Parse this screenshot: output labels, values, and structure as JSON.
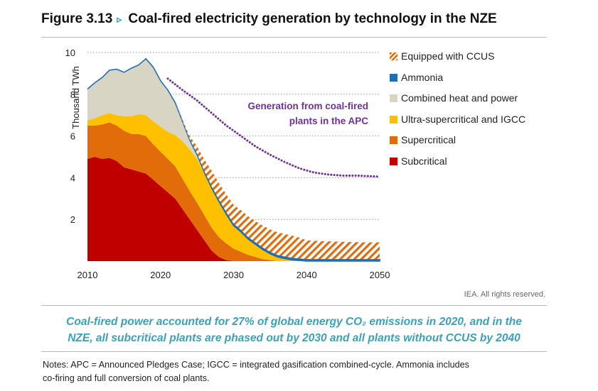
{
  "figure": {
    "label": "Figure 3.13",
    "arrow": "▹",
    "title": "Coal-fired electricity generation by technology in the NZE"
  },
  "rights": "IEA. All rights reserved.",
  "caption": {
    "line1": "Coal-fired power accounted for 27% of global energy CO₂ emissions in 2020, and in the",
    "line2": "NZE, all subcritical plants are phased out by 2030 and all plants without CCUS by 2040"
  },
  "notes": {
    "line1": "Notes: APC = Announced Pledges Case; IGCC = integrated gasification combined-cycle. Ammonia includes",
    "line2": "co-firing and full conversion of coal plants."
  },
  "chart_data": {
    "type": "area",
    "stacked": true,
    "ylabel": "Thousand TWh",
    "xlabel": "",
    "xlim": [
      2010,
      2050
    ],
    "ylim": [
      0,
      10
    ],
    "x_ticks": [
      "2010",
      "2020",
      "2030",
      "2040",
      "2050"
    ],
    "y_ticks": [
      "2",
      "4",
      "6",
      "8",
      "10"
    ],
    "grid": "dotted horizontal",
    "legend_position": "right",
    "annotation": {
      "line1": "Generation from coal-fired",
      "line2": "plants in the APC"
    },
    "x": [
      2010,
      2011,
      2012,
      2013,
      2014,
      2015,
      2016,
      2017,
      2018,
      2019,
      2020,
      2021,
      2022,
      2023,
      2024,
      2025,
      2026,
      2027,
      2028,
      2029,
      2030,
      2031,
      2032,
      2033,
      2034,
      2035,
      2036,
      2037,
      2038,
      2039,
      2040,
      2041,
      2042,
      2043,
      2044,
      2045,
      2046,
      2047,
      2048,
      2049,
      2050
    ],
    "series": [
      {
        "name": "Subcritical",
        "color": "#c00000",
        "pattern": false,
        "values": [
          4.9,
          5.0,
          4.9,
          4.95,
          4.8,
          4.5,
          4.4,
          4.3,
          4.2,
          3.9,
          3.6,
          3.3,
          3.0,
          2.5,
          2.0,
          1.5,
          1.0,
          0.5,
          0.2,
          0.05,
          0,
          0,
          0,
          0,
          0,
          0,
          0,
          0,
          0,
          0,
          0,
          0,
          0,
          0,
          0,
          0,
          0,
          0,
          0,
          0,
          0
        ]
      },
      {
        "name": "Supercritical",
        "color": "#e36c0a",
        "pattern": false,
        "values": [
          1.6,
          1.5,
          1.65,
          1.7,
          1.7,
          1.75,
          1.7,
          1.8,
          1.8,
          1.7,
          1.65,
          1.6,
          1.55,
          1.45,
          1.35,
          1.3,
          1.2,
          1.1,
          0.95,
          0.8,
          0.6,
          0.45,
          0.3,
          0.2,
          0.1,
          0.05,
          0,
          0,
          0,
          0,
          0,
          0,
          0,
          0,
          0,
          0,
          0,
          0,
          0,
          0,
          0
        ]
      },
      {
        "name": "Ultra-supercritical and IGCC",
        "color": "#ffc000",
        "pattern": false,
        "values": [
          0.25,
          0.35,
          0.45,
          0.45,
          0.5,
          0.7,
          0.85,
          0.95,
          1.0,
          1.1,
          1.2,
          1.3,
          1.5,
          1.8,
          2.0,
          2.1,
          2.0,
          1.9,
          1.7,
          1.4,
          1.1,
          0.95,
          0.75,
          0.6,
          0.45,
          0.3,
          0.2,
          0.12,
          0.06,
          0.03,
          0,
          0,
          0,
          0,
          0,
          0,
          0,
          0,
          0,
          0,
          0
        ]
      },
      {
        "name": "Combined heat and power",
        "color": "#d9d5c4",
        "pattern": false,
        "values": [
          1.5,
          1.7,
          1.8,
          2.05,
          2.2,
          2.1,
          2.3,
          2.35,
          2.7,
          2.6,
          2.2,
          2.0,
          1.55,
          0.95,
          0.45,
          0.2,
          0.05,
          0,
          0,
          0,
          0,
          0,
          0,
          0,
          0,
          0,
          0,
          0,
          0,
          0,
          0,
          0,
          0,
          0,
          0,
          0,
          0,
          0,
          0,
          0,
          0
        ]
      },
      {
        "name": "Ammonia",
        "color": "#1f6fb5",
        "pattern": false,
        "values": [
          0,
          0,
          0,
          0,
          0,
          0,
          0,
          0,
          0,
          0,
          0,
          0,
          0,
          0.02,
          0.04,
          0.05,
          0.07,
          0.08,
          0.09,
          0.1,
          0.1,
          0.1,
          0.1,
          0.1,
          0.1,
          0.1,
          0.1,
          0.1,
          0.1,
          0.1,
          0.1,
          0.1,
          0.1,
          0.1,
          0.1,
          0.1,
          0.1,
          0.1,
          0.1,
          0.1,
          0.1
        ]
      },
      {
        "name": "Equipped with CCUS",
        "color": "#e36c0a",
        "pattern": true,
        "values": [
          0,
          0,
          0,
          0,
          0,
          0,
          0,
          0,
          0,
          0,
          0,
          0,
          0,
          0.05,
          0.15,
          0.35,
          0.55,
          0.75,
          0.8,
          0.85,
          0.9,
          0.95,
          1.0,
          1.02,
          1.05,
          1.07,
          1.08,
          1.08,
          1.06,
          1.0,
          0.9,
          0.88,
          0.86,
          0.85,
          0.84,
          0.83,
          0.82,
          0.81,
          0.8,
          0.8,
          0.8
        ]
      }
    ],
    "apc_line": {
      "name": "Generation from coal-fired plants in the APC",
      "color": "#7030a0",
      "x": [
        2021,
        2023,
        2025,
        2027,
        2029,
        2031,
        2033,
        2035,
        2037,
        2039,
        2041,
        2043,
        2045,
        2047,
        2050
      ],
      "values": [
        8.75,
        8.2,
        7.7,
        7.1,
        6.5,
        6.0,
        5.5,
        5.1,
        4.75,
        4.45,
        4.25,
        4.15,
        4.1,
        4.1,
        4.05
      ]
    }
  }
}
